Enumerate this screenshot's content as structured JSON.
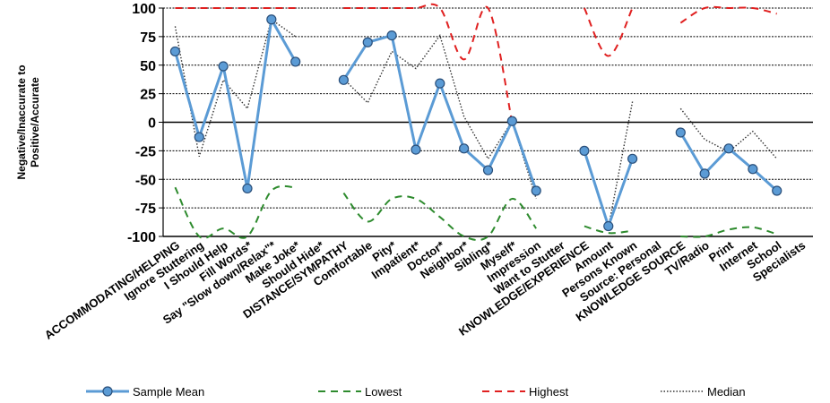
{
  "chart_data": {
    "type": "line",
    "ylabel": "Negative/Inaccurate to Positive/Accurate",
    "ylim": [
      -100,
      100
    ],
    "yticks": [
      100,
      75,
      50,
      25,
      0,
      -25,
      -50,
      -75,
      -100
    ],
    "grid": true,
    "legend_position": "bottom",
    "categories": [
      "ACCOMMODATING/HELPING",
      "Ignore Stuttering",
      "I Should Help",
      "Fill Words*",
      "Say \"Slow down/Relax\"*",
      "Make Joke*",
      "Should Hide*",
      "DISTANCE/SYMPATHY",
      "Comfortable",
      "Pity*",
      "Impatient*",
      "Doctor*",
      "Neighbor*",
      "Sibling*",
      "Myself*",
      "Impression",
      "Want to Stutter",
      "KNOWLEDGE/EXPERIENCE",
      "Amount",
      "Persons Known",
      "Source: Personal",
      "KNOWLEDGE SOURCE",
      "TV/Radio",
      "Print",
      "Internet",
      "School",
      "Specialists"
    ],
    "series": [
      {
        "name": "Sample Mean",
        "color": "#5b9bd5",
        "style": "solid-markers",
        "values": [
          62,
          -13,
          49,
          -58,
          90,
          53,
          null,
          37,
          70,
          76,
          -24,
          34,
          -23,
          -42,
          1,
          -60,
          null,
          -25,
          -91,
          -32,
          null,
          -9,
          -45,
          -23,
          -41,
          -60,
          null
        ]
      },
      {
        "name": "Lowest",
        "color": "#2e8b2e",
        "style": "dashed",
        "values": [
          -57,
          -100,
          -93,
          -100,
          -60,
          -57,
          null,
          -62,
          -87,
          -67,
          -67,
          -83,
          -100,
          -100,
          -67,
          -93,
          null,
          -91,
          -97,
          -95,
          null,
          -100,
          -100,
          -94,
          -92,
          -98,
          null
        ]
      },
      {
        "name": "Highest",
        "color": "#e02020",
        "style": "dashed",
        "values": [
          100,
          100,
          100,
          100,
          100,
          100,
          null,
          100,
          100,
          100,
          100,
          100,
          55,
          100,
          0,
          null,
          null,
          100,
          58,
          100,
          null,
          87,
          100,
          100,
          100,
          95,
          null
        ]
      },
      {
        "name": "Median",
        "color": "#333333",
        "style": "dotted",
        "values": [
          84,
          -30,
          37,
          12,
          90,
          75,
          null,
          38,
          17,
          62,
          47,
          76,
          5,
          -32,
          1,
          -67,
          null,
          -25,
          -92,
          18,
          null,
          12,
          -15,
          -26,
          -8,
          -32,
          null
        ]
      }
    ]
  }
}
